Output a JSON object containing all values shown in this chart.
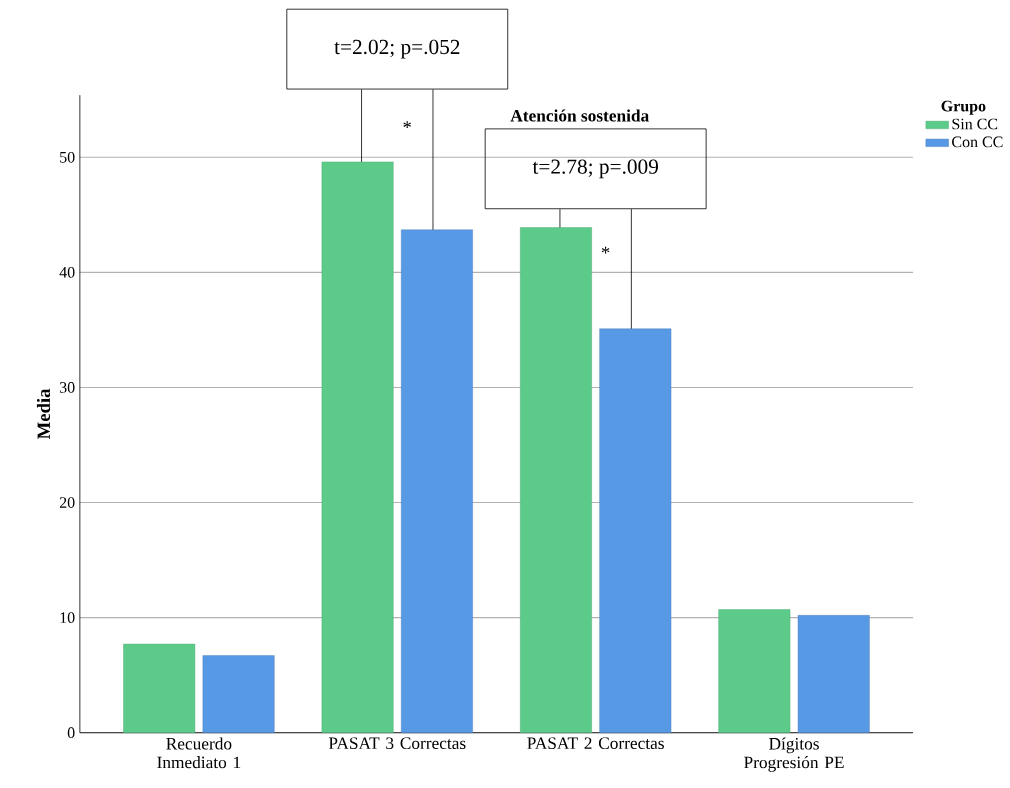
{
  "chart_data": {
    "type": "bar",
    "title": "Atención sostenida",
    "ylabel": "Media",
    "legend_title": "Grupo",
    "categories": [
      "Recuerdo Inmediato 1",
      "PASAT 3 Correctas",
      "PASAT 2 Correctas",
      "Dígitos Progresión PE"
    ],
    "series": [
      {
        "name": "Sin CC",
        "color": "#5ccb8a",
        "values": [
          7.7,
          49.6,
          43.9,
          10.7
        ]
      },
      {
        "name": "Con CC",
        "color": "#5899e5",
        "values": [
          6.7,
          43.7,
          35.1,
          10.2
        ]
      }
    ],
    "ylim": [
      0,
      55.4
    ],
    "yticks": [
      0,
      10,
      20,
      30,
      40,
      50
    ],
    "grid": "y",
    "legend": "top right",
    "annotations": [
      "t=2.02; p=.052",
      "*",
      "t=2.78; p=.009",
      "*"
    ]
  }
}
